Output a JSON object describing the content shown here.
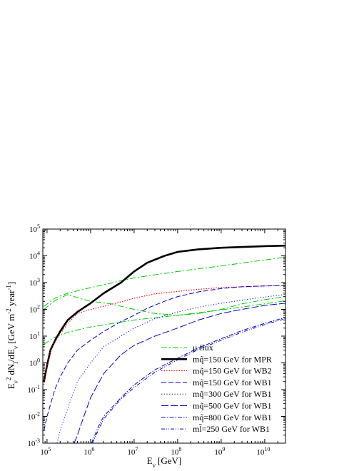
{
  "chart_data": {
    "type": "line",
    "xlabel": "E_ν [GeV]",
    "ylabel": "E_ν² dN/dE_ν [GeV m⁻² year⁻¹]",
    "x_scale": "log",
    "y_scale": "log",
    "xlim": [
      80000,
      30000000000
    ],
    "ylim": [
      0.001,
      100000
    ],
    "grid": false,
    "legend_position": "bottom-right",
    "x_ticks": [
      {
        "value": 100000,
        "mant": "10",
        "exp": "5"
      },
      {
        "value": 1000000,
        "mant": "10",
        "exp": "6"
      },
      {
        "value": 10000000,
        "mant": "10",
        "exp": "7"
      },
      {
        "value": 100000000,
        "mant": "10",
        "exp": "8"
      },
      {
        "value": 1000000000,
        "mant": "10",
        "exp": "9"
      },
      {
        "value": 10000000000,
        "mant": "10",
        "exp": "10"
      }
    ],
    "y_ticks": [
      {
        "value": 0.001,
        "mant": "10",
        "exp": "-3"
      },
      {
        "value": 0.01,
        "mant": "10",
        "exp": "-2"
      },
      {
        "value": 0.1,
        "mant": "10",
        "exp": "-1"
      },
      {
        "value": 1,
        "mant": "10",
        "exp": "0"
      },
      {
        "value": 10,
        "mant": "10",
        "exp": "1"
      },
      {
        "value": 100,
        "mant": "10",
        "exp": "2"
      },
      {
        "value": 1000,
        "mant": "10",
        "exp": "3"
      },
      {
        "value": 10000,
        "mant": "10",
        "exp": "4"
      },
      {
        "value": 100000,
        "mant": "10",
        "exp": "5"
      }
    ],
    "series": [
      {
        "name": "μ flux (upper)",
        "color": "#00cc00",
        "dash": "8,3,2,3",
        "width": 1,
        "points": [
          [
            85000,
            130
          ],
          [
            150000,
            260
          ],
          [
            300000,
            400
          ],
          [
            1000000,
            650
          ],
          [
            10000000,
            1500
          ],
          [
            100000000,
            2600
          ],
          [
            1000000000,
            4200
          ],
          [
            10000000000,
            7000
          ],
          [
            30000000000,
            9000
          ]
        ]
      },
      {
        "name": "μ flux (middle)",
        "color": "#00cc00",
        "dash": "8,3,2,3",
        "width": 1,
        "points": [
          [
            85000,
            100
          ],
          [
            150000,
            210
          ],
          [
            300000,
            360
          ],
          [
            600000,
            250
          ],
          [
            1000000,
            200
          ],
          [
            3000000,
            160
          ],
          [
            10000000,
            100
          ],
          [
            30000000,
            70
          ],
          [
            100000000,
            60
          ],
          [
            300000000,
            70
          ],
          [
            1000000000,
            100
          ],
          [
            3000000000,
            160
          ],
          [
            10000000000,
            230
          ],
          [
            30000000000,
            300
          ]
        ]
      },
      {
        "name": "μ flux (lower)",
        "color": "#00cc00",
        "dash": "8,3,2,3",
        "width": 1,
        "points": [
          [
            85000,
            5
          ],
          [
            150000,
            9
          ],
          [
            300000,
            14
          ],
          [
            1000000,
            22
          ],
          [
            10000000,
            40
          ],
          [
            100000000,
            60
          ],
          [
            1000000000,
            95
          ],
          [
            10000000000,
            160
          ],
          [
            30000000000,
            210
          ]
        ]
      },
      {
        "name": "m_q̃=150 GeV for MPR",
        "color": "#000000",
        "dash": "",
        "width": 2.6,
        "points": [
          [
            85000,
            0.2
          ],
          [
            100000,
            0.8
          ],
          [
            120000,
            3
          ],
          [
            160000,
            8
          ],
          [
            200000,
            15
          ],
          [
            300000,
            40
          ],
          [
            500000,
            80
          ],
          [
            1000000,
            170
          ],
          [
            2000000,
            400
          ],
          [
            5000000,
            1000
          ],
          [
            10000000,
            2600
          ],
          [
            20000000,
            5500
          ],
          [
            50000000,
            10000
          ],
          [
            100000000,
            14000
          ],
          [
            300000000,
            17500
          ],
          [
            1000000000,
            20000
          ],
          [
            10000000000,
            23000
          ],
          [
            30000000000,
            24000
          ]
        ]
      },
      {
        "name": "m_q̃=150 GeV for WB2",
        "color": "#ff0000",
        "dash": "1.5,2",
        "width": 1.1,
        "points": [
          [
            85000,
            0.15
          ],
          [
            100000,
            0.7
          ],
          [
            120000,
            3
          ],
          [
            160000,
            7
          ],
          [
            200000,
            12
          ],
          [
            300000,
            30
          ],
          [
            500000,
            70
          ],
          [
            1000000,
            100
          ],
          [
            2000000,
            130
          ],
          [
            5000000,
            190
          ],
          [
            10000000,
            260
          ],
          [
            30000000,
            380
          ],
          [
            100000000,
            470
          ],
          [
            300000000,
            560
          ],
          [
            1000000000,
            650
          ],
          [
            10000000000,
            750
          ],
          [
            30000000000,
            780
          ]
        ]
      },
      {
        "name": "m_q̃=150 GeV for WB1",
        "color": "#0000cc",
        "dash": "7,3",
        "width": 1,
        "points": [
          [
            85000,
            0.003
          ],
          [
            100000,
            0.01
          ],
          [
            150000,
            0.1
          ],
          [
            200000,
            0.3
          ],
          [
            300000,
            1
          ],
          [
            500000,
            3
          ],
          [
            1000000,
            7
          ],
          [
            2000000,
            15
          ],
          [
            5000000,
            35
          ],
          [
            10000000,
            60
          ],
          [
            20000000,
            110
          ],
          [
            50000000,
            200
          ],
          [
            100000000,
            300
          ],
          [
            300000000,
            450
          ],
          [
            1000000000,
            600
          ],
          [
            3000000000,
            700
          ],
          [
            10000000000,
            750
          ],
          [
            30000000000,
            780
          ]
        ]
      },
      {
        "name": "m_q̃=300 GeV for WB1",
        "color": "#0000cc",
        "dash": "1.2,2.5",
        "width": 1,
        "points": [
          [
            170000,
            0.001
          ],
          [
            200000,
            0.003
          ],
          [
            300000,
            0.02
          ],
          [
            500000,
            0.2
          ],
          [
            1000000,
            1
          ],
          [
            2000000,
            4
          ],
          [
            5000000,
            10
          ],
          [
            10000000,
            20
          ],
          [
            30000000,
            45
          ],
          [
            100000000,
            80
          ],
          [
            300000000,
            120
          ],
          [
            1000000000,
            170
          ],
          [
            3000000000,
            220
          ],
          [
            10000000000,
            290
          ],
          [
            30000000000,
            360
          ]
        ]
      },
      {
        "name": "m_q̃=500 GeV for WB1",
        "color": "#0000cc",
        "dash": "10,3",
        "width": 1,
        "points": [
          [
            420000,
            0.001
          ],
          [
            500000,
            0.002
          ],
          [
            700000,
            0.01
          ],
          [
            1000000,
            0.05
          ],
          [
            2000000,
            0.4
          ],
          [
            5000000,
            2
          ],
          [
            10000000,
            4.5
          ],
          [
            30000000,
            10
          ],
          [
            100000000,
            20
          ],
          [
            300000000,
            40
          ],
          [
            1000000000,
            70
          ],
          [
            3000000000,
            100
          ],
          [
            10000000000,
            140
          ],
          [
            30000000000,
            170
          ]
        ]
      },
      {
        "name": "m_q̃=800 GeV for WB1",
        "color": "#0000cc",
        "dash": "6,2,1.5,2",
        "width": 1,
        "points": [
          [
            1050000,
            0.001
          ],
          [
            1500000,
            0.004
          ],
          [
            2000000,
            0.01
          ],
          [
            5000000,
            0.05
          ],
          [
            10000000,
            0.15
          ],
          [
            30000000,
            0.55
          ],
          [
            100000000,
            1.5
          ],
          [
            300000000,
            3.6
          ],
          [
            1000000000,
            8
          ],
          [
            3000000000,
            16
          ],
          [
            10000000000,
            30
          ],
          [
            30000000000,
            50
          ]
        ]
      },
      {
        "name": "m_l̃=250 GeV for WB1",
        "color": "#0000cc",
        "dash": "5,2,1,2,1,2",
        "width": 1,
        "points": [
          [
            1100000,
            0.001
          ],
          [
            1500000,
            0.003
          ],
          [
            2000000,
            0.008
          ],
          [
            5000000,
            0.045
          ],
          [
            10000000,
            0.12
          ],
          [
            30000000,
            0.45
          ],
          [
            100000000,
            1.3
          ],
          [
            300000000,
            3.2
          ],
          [
            1000000000,
            7
          ],
          [
            3000000000,
            14
          ],
          [
            10000000000,
            27
          ],
          [
            30000000000,
            45
          ]
        ]
      }
    ],
    "legend": [
      {
        "label": "μ  flux",
        "color": "#00cc00",
        "dash": "8,3,2,3",
        "width": 1
      },
      {
        "label": "mq̃=150 GeV for MPR",
        "color": "#000000",
        "dash": "",
        "width": 2.6
      },
      {
        "label": "mq̃=150 GeV for WB2",
        "color": "#ff0000",
        "dash": "1.5,2",
        "width": 1.1
      },
      {
        "label": "mq̃=150 GeV for WB1",
        "color": "#0000cc",
        "dash": "7,3",
        "width": 1
      },
      {
        "label": "mq̃=300 GeV for WB1",
        "color": "#0000cc",
        "dash": "1.2,2.5",
        "width": 1
      },
      {
        "label": "mq̃=500 GeV for WB1",
        "color": "#0000cc",
        "dash": "10,3",
        "width": 1
      },
      {
        "label": "mq̃=800 GeV for WB1",
        "color": "#0000cc",
        "dash": "6,2,1.5,2",
        "width": 1
      },
      {
        "label": "ml̃=250 GeV for WB1",
        "color": "#0000cc",
        "dash": "5,2,1,2,1,2",
        "width": 1
      }
    ]
  }
}
